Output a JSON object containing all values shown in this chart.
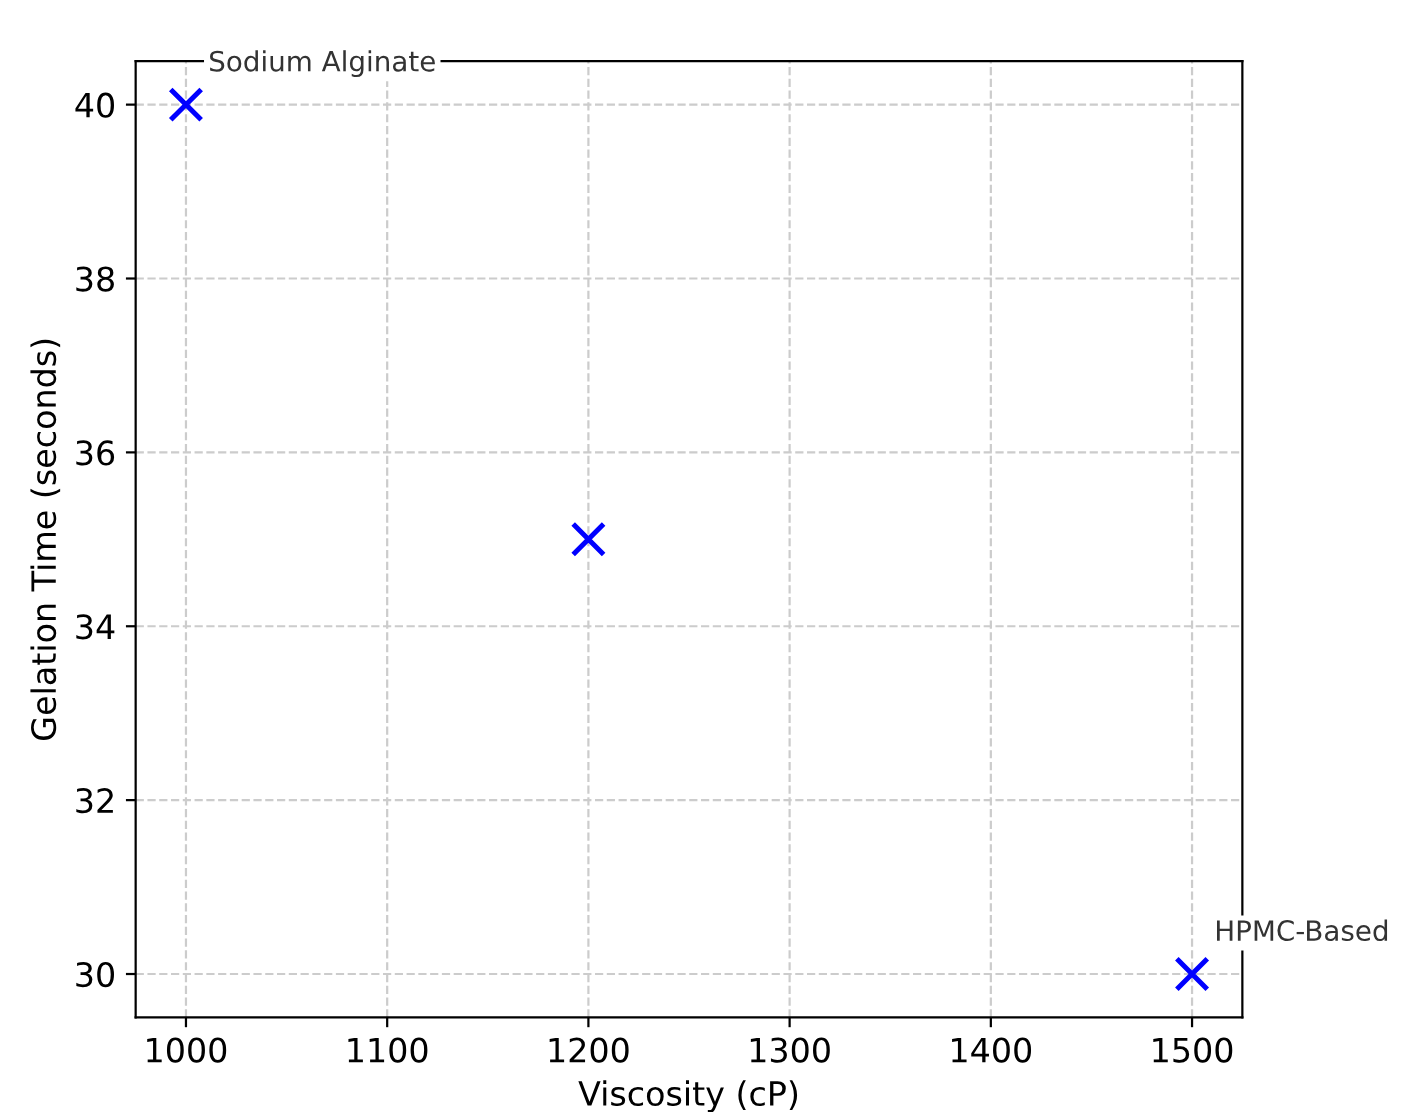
{
  "chart_data": {
    "type": "scatter",
    "xlabel": "Viscosity (cP)",
    "ylabel": "Gelation Time (seconds)",
    "x": [
      1000,
      1200,
      1500
    ],
    "series": [
      {
        "color": "#0000ff",
        "values": [
          40,
          35,
          30
        ]
      }
    ],
    "marker": "cross",
    "xlim": [
      975,
      1525
    ],
    "ylim": [
      29.5,
      40.5
    ],
    "xticks": [
      1000,
      1100,
      1200,
      1300,
      1400,
      1500
    ],
    "yticks": [
      30,
      32,
      34,
      36,
      38,
      40
    ],
    "grid": true,
    "annotations": [
      {
        "text": "Sodium Alginate",
        "x": 1000,
        "y": 40
      },
      {
        "text": "HPMC-Based",
        "x": 1500,
        "y": 30
      }
    ]
  }
}
